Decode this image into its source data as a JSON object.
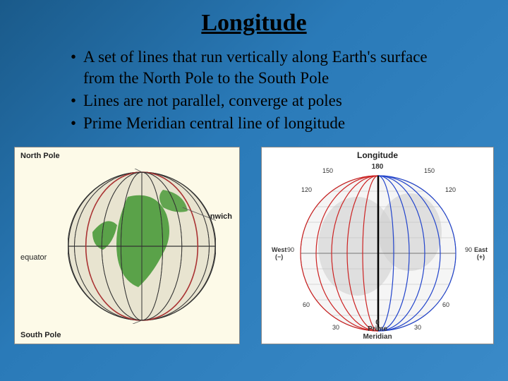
{
  "title": "Longitude",
  "bullets": [
    "A set of lines that run vertically along Earth's surface from the North Pole to the South Pole",
    "Lines are not parallel, converge at poles",
    "Prime Meridian central line of longitude"
  ],
  "globe1": {
    "labels": {
      "north_pole": "North Pole",
      "south_pole": "South Pole",
      "greenwich": "Greenwich",
      "equator": "equator"
    },
    "colors": {
      "background": "#fdfae8",
      "ocean": "#e8e4d0",
      "land": "#4a9a3a",
      "lines": "#333333",
      "greenwich_line": "#aa3333"
    },
    "radius": 105,
    "meridian_count": 11
  },
  "globe2": {
    "title": "Longitude",
    "labels": {
      "prime_meridian": "Prime\nMeridian",
      "west": "West\n(−)",
      "east": "East\n(+)",
      "top_mark": "180",
      "bottom_mark": "0"
    },
    "degree_marks": [
      30,
      60,
      90,
      120,
      150
    ],
    "colors": {
      "background": "#ffffff",
      "sphere": "#f5f5f5",
      "land": "#d0d0d0",
      "west_lines": "#cc2222",
      "east_lines": "#2244cc",
      "prime_line": "#000000",
      "latitude_lines": "#bbbbbb"
    },
    "radius": 110,
    "meridian_count_side": 5
  }
}
